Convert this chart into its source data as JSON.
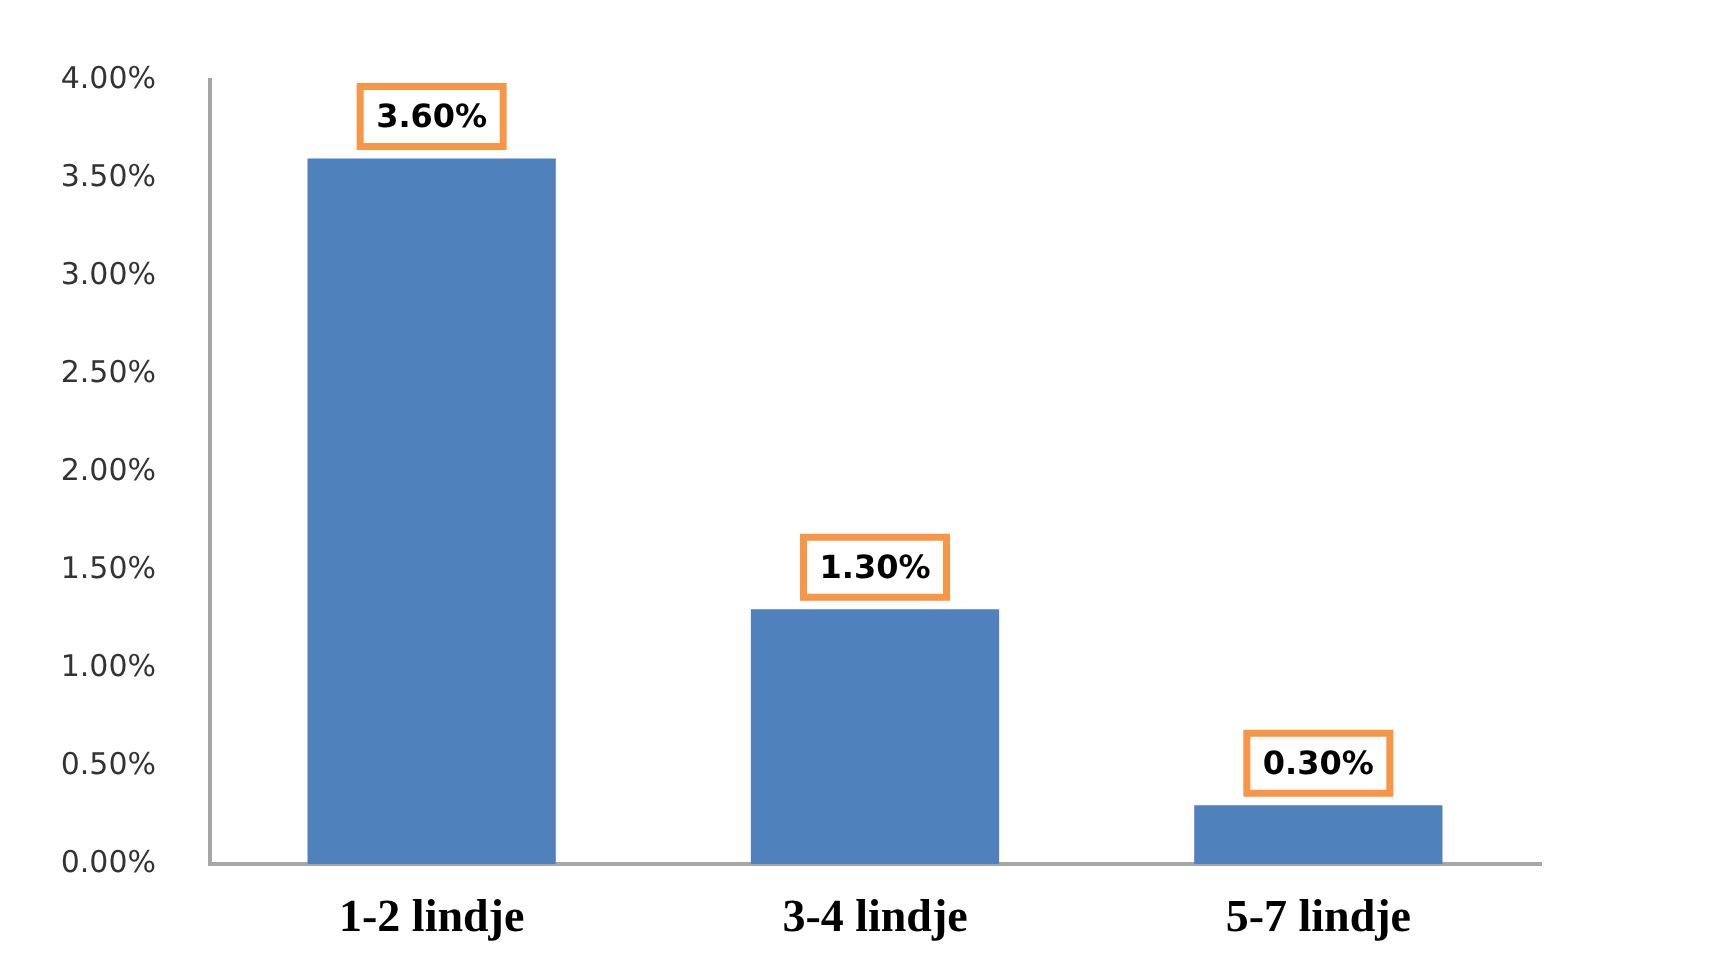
{
  "chart_data": {
    "type": "bar",
    "categories": [
      "1-2 lindje",
      "3-4 lindje",
      "5-7 lindje"
    ],
    "values": [
      3.6,
      1.3,
      0.3
    ],
    "color": "#4f81bd",
    "value_labels": [
      "3.60%",
      "1.30%",
      "0.30%"
    ],
    "ylim": [
      0,
      4
    ],
    "yticks": [
      {
        "value": 0,
        "label": "0.00%"
      },
      {
        "value": 0.5,
        "label": "0.50%"
      },
      {
        "value": 1,
        "label": "1.00%"
      },
      {
        "value": 1.5,
        "label": "1.50%"
      },
      {
        "value": 2,
        "label": "2.00%"
      },
      {
        "value": 2.5,
        "label": "2.50%"
      },
      {
        "value": 3,
        "label": "3.00%"
      },
      {
        "value": 3.5,
        "label": "3.50%"
      },
      {
        "value": 4,
        "label": "4.00%"
      }
    ]
  }
}
